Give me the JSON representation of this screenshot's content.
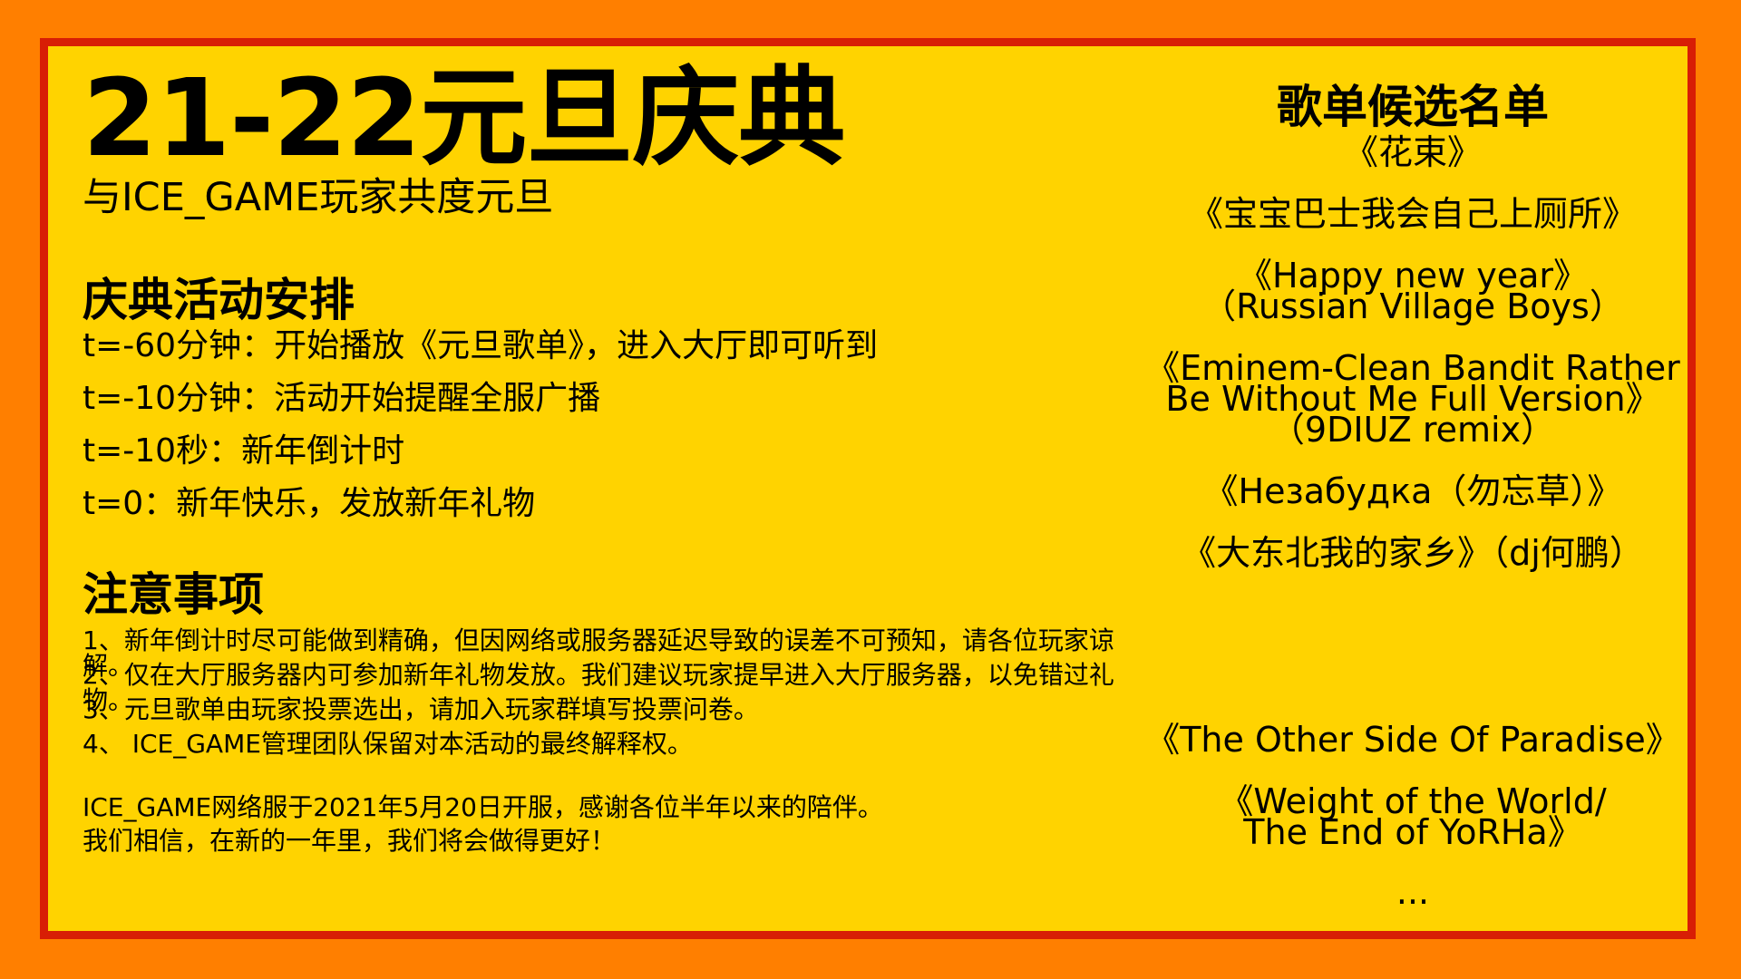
{
  "title": "21-22元旦庆典",
  "subtitle": "与ICE_GAME玩家共度元旦",
  "schedule": {
    "heading": "庆典活动安排",
    "items": [
      "t=-60分钟：开始播放《元旦歌单》，进入大厅即可听到",
      "t=-10分钟：活动开始提醒全服广播",
      "t=-10秒：新年倒计时",
      "t=0：新年快乐，发放新年礼物"
    ]
  },
  "notes": {
    "heading": "注意事项",
    "items": [
      "1、新年倒计时尽可能做到精确，但因网络或服务器延迟导致的误差不可预知，请各位玩家谅解。",
      "2、仅在大厅服务器内可参加新年礼物发放。我们建议玩家提早进入大厅服务器，以免错过礼物。",
      "3、元旦歌单由玩家投票选出，请加入玩家群填写投票问卷。",
      "4、 ICE_GAME管理团队保留对本活动的最终解释权。"
    ]
  },
  "footer": [
    "ICE_GAME网络服于2021年5月20日开服，感谢各位半年以来的陪伴。",
    "我们相信，在新的一年里，我们将会做得更好！"
  ],
  "songs": {
    "heading": "歌单候选名单",
    "items": [
      [
        "《花束》"
      ],
      [
        "《宝宝巴士我会自己上厕所》"
      ],
      [
        "《Happy new year》",
        "（Russian Village Boys）"
      ],
      [
        "《Eminem-Clean Bandit Rather",
        "Be Without Me Full Version》",
        "（9DIUZ remix）"
      ],
      [
        "《Незабудка（勿忘草）》"
      ],
      [
        "《大东北我的家乡》（dj何鹏）"
      ],
      [
        "《The Other Side Of Paradise》"
      ],
      [
        "《Weight of the World/",
        "The End of YoRHa》"
      ]
    ],
    "ellipsis": "..."
  },
  "colors": {
    "background": "#ff7f00",
    "frame": "#d81e05",
    "panel": "#ffd300",
    "text": "#000000"
  }
}
